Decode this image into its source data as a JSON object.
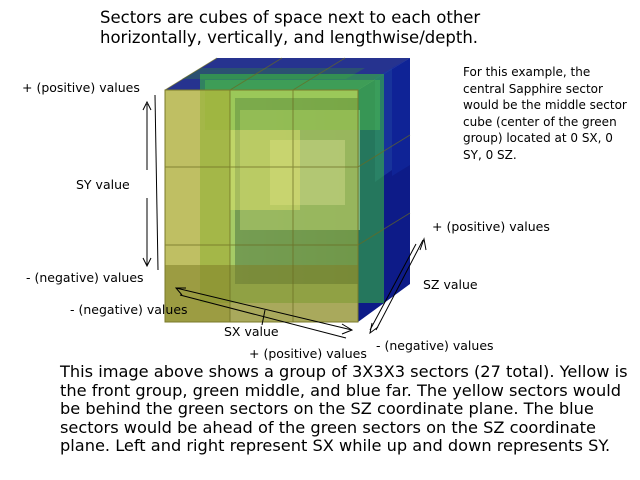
{
  "heading": "Sectors are cubes of space next to each other horizontally, vertically, and lengthwise/depth.",
  "note": "For this example, the central Sapphire sector would be the middle sector cube (center of the green group) located at 0 SX, 0 SY, 0 SZ.",
  "sy_axis": {
    "positive": "+ (positive) values",
    "label": "SY value",
    "negative": "- (negative) values"
  },
  "sx_axis": {
    "negative": "- (negative) values",
    "label": "SX value",
    "positive": "+ (positive) values"
  },
  "sz_axis": {
    "positive": "+ (positive) values",
    "label": "SZ value",
    "negative": "- (negative) values"
  },
  "groups": [
    {
      "name": "yellow",
      "color": "#c8c832"
    },
    {
      "name": "green",
      "color": "#32c832"
    },
    {
      "name": "blue",
      "color": "#1e1ecc"
    }
  ],
  "description": "This image above shows a group of 3X3X3 sectors (27 total). Yellow is the front group, green middle, and blue far.  The yellow sectors would be behind the green sectors on the SZ coordinate plane.  The blue sectors would be ahead of the green sectors on the SZ coordinate plane.  Left and right represent SX while up and down represents SY."
}
